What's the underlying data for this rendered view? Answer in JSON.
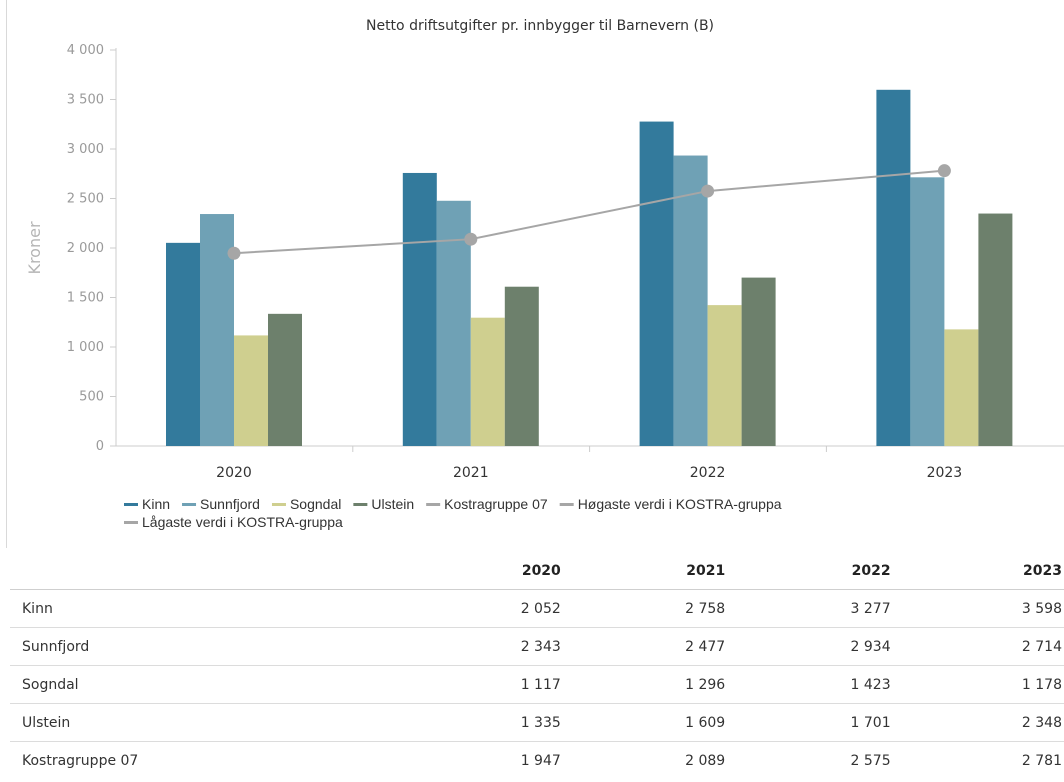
{
  "chart_data": {
    "type": "bar",
    "title": "Netto driftsutgifter pr. innbygger til Barnevern (B)",
    "ylabel": "Kroner",
    "xlabel": "",
    "categories": [
      "2020",
      "2021",
      "2022",
      "2023"
    ],
    "ylim": [
      0,
      4000
    ],
    "yticks": [
      0,
      500,
      1000,
      1500,
      2000,
      2500,
      3000,
      3500,
      4000
    ],
    "ytick_labels": [
      "0",
      "500",
      "1 000",
      "1 500",
      "2 000",
      "2 500",
      "3 000",
      "3 500",
      "4 000"
    ],
    "grid": false,
    "legend_placement": "bottom",
    "series": [
      {
        "name": "Kinn",
        "kind": "bar",
        "color": "#337a9c",
        "values": [
          2052,
          2758,
          3277,
          3598
        ]
      },
      {
        "name": "Sunnfjord",
        "kind": "bar",
        "color": "#6fa1b5",
        "values": [
          2343,
          2477,
          2934,
          2714
        ]
      },
      {
        "name": "Sogndal",
        "kind": "bar",
        "color": "#cfcf8f",
        "values": [
          1117,
          1296,
          1423,
          1178
        ]
      },
      {
        "name": "Ulstein",
        "kind": "bar",
        "color": "#6d806c",
        "values": [
          1335,
          1609,
          1701,
          2348
        ]
      },
      {
        "name": "Kostragruppe 07",
        "kind": "line",
        "color": "#a6a6a6",
        "values": [
          1947,
          2089,
          2575,
          2781
        ]
      },
      {
        "name": "Høgaste verdi i KOSTRA-gruppa",
        "kind": "legend-only",
        "color": "#a6a6a6"
      },
      {
        "name": "Lågaste verdi i KOSTRA-gruppa",
        "kind": "legend-only",
        "color": "#a6a6a6"
      }
    ]
  },
  "table": {
    "header": [
      "",
      "2020",
      "2021",
      "2022",
      "2023"
    ],
    "rows": [
      {
        "name": "Kinn",
        "cells": [
          "2 052",
          "2 758",
          "3 277",
          "3 598"
        ]
      },
      {
        "name": "Sunnfjord",
        "cells": [
          "2 343",
          "2 477",
          "2 934",
          "2 714"
        ]
      },
      {
        "name": "Sogndal",
        "cells": [
          "1 117",
          "1 296",
          "1 423",
          "1 178"
        ]
      },
      {
        "name": "Ulstein",
        "cells": [
          "1 335",
          "1 609",
          "1 701",
          "2 348"
        ]
      },
      {
        "name": "Kostragruppe 07",
        "cells": [
          "1 947",
          "2 089",
          "2 575",
          "2 781"
        ]
      }
    ]
  }
}
